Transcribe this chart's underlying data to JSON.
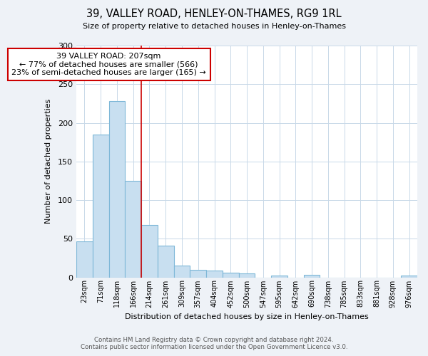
{
  "title": "39, VALLEY ROAD, HENLEY-ON-THAMES, RG9 1RL",
  "subtitle": "Size of property relative to detached houses in Henley-on-Thames",
  "xlabel": "Distribution of detached houses by size in Henley-on-Thames",
  "ylabel": "Number of detached properties",
  "bar_labels": [
    "23sqm",
    "71sqm",
    "118sqm",
    "166sqm",
    "214sqm",
    "261sqm",
    "309sqm",
    "357sqm",
    "404sqm",
    "452sqm",
    "500sqm",
    "547sqm",
    "595sqm",
    "642sqm",
    "690sqm",
    "738sqm",
    "785sqm",
    "833sqm",
    "881sqm",
    "928sqm",
    "976sqm"
  ],
  "bar_values": [
    47,
    185,
    228,
    125,
    68,
    41,
    15,
    10,
    9,
    6,
    5,
    0,
    2,
    0,
    3,
    0,
    0,
    0,
    0,
    0,
    2
  ],
  "bar_color": "#c8dff0",
  "bar_edge_color": "#7fb8d8",
  "property_line_x": 4,
  "property_line_color": "#cc0000",
  "annotation_line1": "39 VALLEY ROAD: 207sqm",
  "annotation_line2": "← 77% of detached houses are smaller (566)",
  "annotation_line3": "23% of semi-detached houses are larger (165) →",
  "annotation_box_color": "#cc0000",
  "ylim": [
    0,
    300
  ],
  "yticks": [
    0,
    50,
    100,
    150,
    200,
    250,
    300
  ],
  "footer_line1": "Contains HM Land Registry data © Crown copyright and database right 2024.",
  "footer_line2": "Contains public sector information licensed under the Open Government Licence v3.0.",
  "bg_color": "#eef2f7",
  "plot_bg_color": "#ffffff",
  "grid_color": "#c8d8e8"
}
